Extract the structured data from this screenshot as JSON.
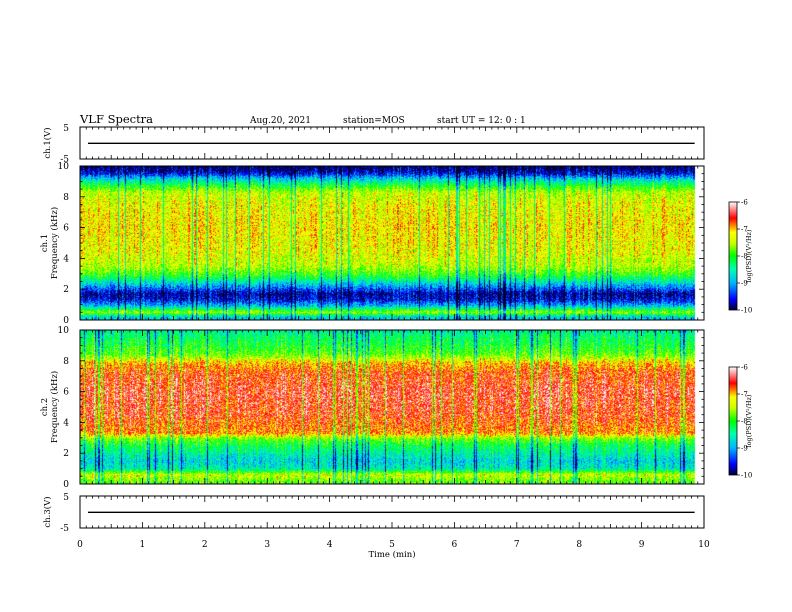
{
  "header": {
    "title": "VLF Spectra",
    "date": "Aug.20, 2021",
    "station": "station=MOS",
    "start_ut": "start UT =  12: 0  : 1"
  },
  "chart_data": [
    {
      "type": "line",
      "name": "ch1-waveform",
      "ylabel": "ch.1(V)",
      "ylim": [
        -5,
        5
      ],
      "yticks": [
        5,
        -5
      ],
      "baseline_value": 0.0,
      "xlim": [
        0,
        10
      ]
    },
    {
      "type": "heatmap",
      "name": "ch1-spectrogram",
      "ylabel_top": "ch.1",
      "ylabel": "Frequency (kHz)",
      "ylim": [
        0,
        10
      ],
      "yticks": [
        "0",
        "2",
        "4",
        "6",
        "8",
        "10"
      ],
      "xlim": [
        0,
        10
      ],
      "data_end_min": 9.85,
      "colorbar": {
        "range": [
          -10,
          -6
        ],
        "ticks": [
          "-6",
          "-7",
          "-8",
          "-9",
          "-10"
        ],
        "label": "log(PSD)(V²/Hz)"
      },
      "frequency_profile": [
        {
          "f": 0.2,
          "v": -8.8
        },
        {
          "f": 0.5,
          "v": -7.6
        },
        {
          "f": 0.9,
          "v": -8.9
        },
        {
          "f": 1.3,
          "v": -9.6
        },
        {
          "f": 1.7,
          "v": -9.8
        },
        {
          "f": 2.1,
          "v": -9.2
        },
        {
          "f": 2.5,
          "v": -8.6
        },
        {
          "f": 2.9,
          "v": -8.0
        },
        {
          "f": 3.5,
          "v": -7.5
        },
        {
          "f": 4.5,
          "v": -7.3
        },
        {
          "f": 6.0,
          "v": -7.2
        },
        {
          "f": 7.5,
          "v": -7.3
        },
        {
          "f": 8.3,
          "v": -7.5
        },
        {
          "f": 8.8,
          "v": -8.2
        },
        {
          "f": 9.2,
          "v": -8.9
        },
        {
          "f": 9.5,
          "v": -9.6
        },
        {
          "f": 9.8,
          "v": -9.9
        }
      ]
    },
    {
      "type": "heatmap",
      "name": "ch2-spectrogram",
      "ylabel_top": "ch.2",
      "ylabel": "Frequency (kHz)",
      "ylim": [
        0,
        10
      ],
      "yticks": [
        "0",
        "2",
        "4",
        "6",
        "8",
        "10"
      ],
      "xlim": [
        0,
        10
      ],
      "data_end_min": 9.85,
      "colorbar": {
        "range": [
          -10,
          -6
        ],
        "ticks": [
          "-6",
          "-7",
          "-8",
          "-9",
          "-10"
        ],
        "label": "log(PSD)(V²/Hz)"
      },
      "frequency_profile": [
        {
          "f": 0.2,
          "v": -7.8
        },
        {
          "f": 0.6,
          "v": -7.4
        },
        {
          "f": 1.0,
          "v": -8.6
        },
        {
          "f": 1.5,
          "v": -8.8
        },
        {
          "f": 2.0,
          "v": -8.5
        },
        {
          "f": 2.5,
          "v": -8.2
        },
        {
          "f": 2.9,
          "v": -7.8
        },
        {
          "f": 3.3,
          "v": -6.9
        },
        {
          "f": 4.5,
          "v": -6.6
        },
        {
          "f": 6.0,
          "v": -6.5
        },
        {
          "f": 7.3,
          "v": -6.7
        },
        {
          "f": 7.9,
          "v": -7.1
        },
        {
          "f": 8.4,
          "v": -7.8
        },
        {
          "f": 9.0,
          "v": -8.1
        },
        {
          "f": 9.6,
          "v": -8.3
        },
        {
          "f": 9.9,
          "v": -8.5
        }
      ]
    },
    {
      "type": "line",
      "name": "ch3-waveform",
      "ylabel": "ch.3(V)",
      "ylim": [
        -5,
        5
      ],
      "yticks": [
        5,
        -5
      ],
      "baseline_value": 0.0,
      "xlim": [
        0,
        10
      ]
    }
  ],
  "xaxis": {
    "label": "Time (min)",
    "ticks": [
      "0",
      "1",
      "2",
      "3",
      "4",
      "5",
      "6",
      "7",
      "8",
      "9",
      "10"
    ]
  }
}
